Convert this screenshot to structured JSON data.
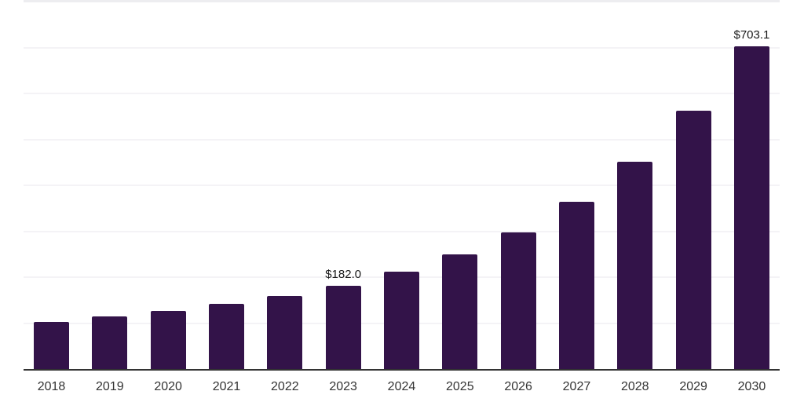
{
  "chart_data": {
    "type": "bar",
    "title": "",
    "xlabel": "",
    "ylabel": "",
    "categories": [
      "2018",
      "2019",
      "2020",
      "2021",
      "2022",
      "2023",
      "2024",
      "2025",
      "2026",
      "2027",
      "2028",
      "2029",
      "2030"
    ],
    "values": [
      103.0,
      114.5,
      126.5,
      142.0,
      159.0,
      182.0,
      212.0,
      249.5,
      297.5,
      364.0,
      451.5,
      562.5,
      703.1
    ],
    "data_labels": {
      "2023": "$182.0",
      "2030": "$703.1"
    },
    "currency_prefix": "$",
    "ylim": [
      0,
      800
    ],
    "gridline_step": 100,
    "grid": "horizontal",
    "legend": "none",
    "y_axis_tick_labels_visible": false
  },
  "colors": {
    "bar": "#331349",
    "gridline": "#f4f3f6",
    "gridline_top": "#ededf0",
    "axis_line": "#333333",
    "tick_label": "#333333",
    "data_label": "#1a1a1a",
    "background": "#ffffff"
  }
}
